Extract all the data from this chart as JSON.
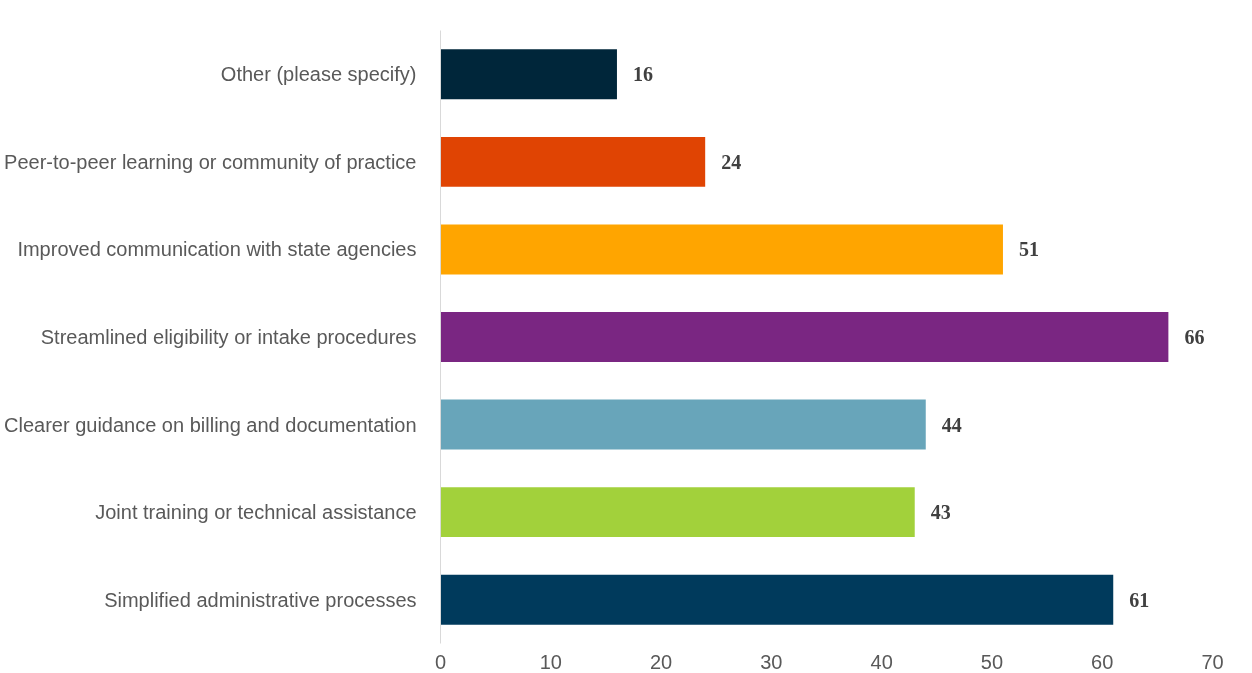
{
  "chart_data": {
    "type": "bar",
    "orientation": "horizontal",
    "categories": [
      "Other (please specify)",
      "Peer-to-peer learning or community of practice",
      "Improved communication with state agencies",
      "Streamlined eligibility or intake procedures",
      "Clearer guidance on billing and documentation",
      "Joint training or technical assistance",
      "Simplified administrative processes"
    ],
    "values": [
      16,
      24,
      51,
      66,
      44,
      43,
      61
    ],
    "colors": [
      "#00263a",
      "#e04403",
      "#ffa500",
      "#7a2682",
      "#68a5ba",
      "#a2d13b",
      "#003a5c"
    ],
    "xlim": [
      0,
      70
    ],
    "xticks": [
      0,
      10,
      20,
      30,
      40,
      50,
      60,
      70
    ],
    "data_labels": true,
    "grid": false
  }
}
